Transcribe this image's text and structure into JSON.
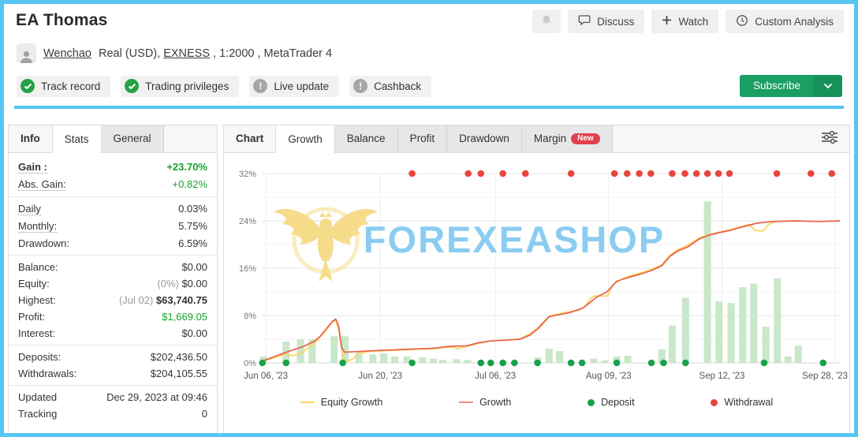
{
  "header": {
    "title": "EA Thomas",
    "user_link": "Wenchao",
    "account": {
      "pre": "Real (USD), ",
      "broker": "EXNESS",
      "post": " , 1:2000 , MetaTrader 4"
    },
    "actions": {
      "discuss": "Discuss",
      "watch": "Watch",
      "custom_analysis": "Custom Analysis"
    },
    "badges": [
      {
        "label": "Track record",
        "status": "ok"
      },
      {
        "label": "Trading privileges",
        "status": "ok"
      },
      {
        "label": "Live update",
        "status": "warn"
      },
      {
        "label": "Cashback",
        "status": "warn"
      }
    ],
    "subscribe_label": "Subscribe"
  },
  "sidebar": {
    "tabs": [
      {
        "label": "Info",
        "state": "plain"
      },
      {
        "label": "Stats",
        "state": "active"
      },
      {
        "label": "General",
        "state": "idle"
      }
    ],
    "groups": [
      {
        "rows": [
          {
            "label": "Gain :",
            "label_style": "bold dotted",
            "value": "+23.70%",
            "value_style": "green bold"
          },
          {
            "label": "Abs. Gain:",
            "label_style": "dotted",
            "value": "+0.82%",
            "value_style": "green"
          }
        ]
      },
      {
        "rows": [
          {
            "label": "Daily",
            "label_style": "dotted",
            "value": "0.03%"
          },
          {
            "label": "Monthly:",
            "label_style": "dotted",
            "value": "5.75%"
          },
          {
            "label": "Drawdown:",
            "value": "6.59%"
          }
        ]
      },
      {
        "rows": [
          {
            "label": "Balance:",
            "value": "$0.00"
          },
          {
            "label": "Equity:",
            "value_prefix": "(0%) ",
            "value": "$0.00"
          },
          {
            "label": "Highest:",
            "value_prefix": "(Jul 02) ",
            "value": "$63,740.75",
            "value_style": "bold"
          },
          {
            "label": "Profit:",
            "value": "$1,669.05",
            "value_style": "green"
          },
          {
            "label": "Interest:",
            "value": "$0.00"
          }
        ]
      },
      {
        "rows": [
          {
            "label": "Deposits:",
            "value": "$202,436.50"
          },
          {
            "label": "Withdrawals:",
            "value": "$204,105.55"
          }
        ]
      },
      {
        "rows": [
          {
            "label": "Updated",
            "value": "Dec 29, 2023 at 09:46"
          },
          {
            "label": "Tracking",
            "value": "0"
          }
        ]
      }
    ]
  },
  "chart_panel": {
    "tabs": [
      {
        "label": "Chart",
        "state": "plain"
      },
      {
        "label": "Growth",
        "state": "active"
      },
      {
        "label": "Balance",
        "state": "idle"
      },
      {
        "label": "Profit",
        "state": "idle"
      },
      {
        "label": "Drawdown",
        "state": "idle"
      },
      {
        "label": "Margin",
        "state": "idle",
        "badge": "New"
      }
    ]
  },
  "chart_data": {
    "type": "line",
    "title": "Growth",
    "y_unit": "%",
    "y_max": 32,
    "y_ticks": [
      0,
      8,
      16,
      24,
      32
    ],
    "y_subticks": [
      4,
      12,
      20,
      28
    ],
    "x_labels": [
      {
        "label": "Jun 06, '23",
        "f": 0.007
      },
      {
        "label": "Jun 20, '23",
        "f": 0.205
      },
      {
        "label": "Jul 06, '23",
        "f": 0.404
      },
      {
        "label": "Aug 09, '23",
        "f": 0.6
      },
      {
        "label": "Sep 12, '23",
        "f": 0.796
      },
      {
        "label": "Sep 28, '23",
        "f": 0.992
      }
    ],
    "series": [
      {
        "name": "Equity Growth",
        "color": "#fbd35e",
        "points": [
          [
            0.001,
            0.3
          ],
          [
            0.02,
            0.8
          ],
          [
            0.04,
            1.5
          ],
          [
            0.055,
            1.2
          ],
          [
            0.07,
            1.8
          ],
          [
            0.09,
            3.2
          ],
          [
            0.1,
            4.3
          ],
          [
            0.112,
            5.6
          ],
          [
            0.122,
            6.9
          ],
          [
            0.128,
            7.2
          ],
          [
            0.133,
            5.5
          ],
          [
            0.14,
            1.0
          ],
          [
            0.147,
            0.3
          ],
          [
            0.157,
            0.6
          ],
          [
            0.168,
            1.6
          ],
          [
            0.185,
            1.9
          ],
          [
            0.2,
            2.0
          ],
          [
            0.25,
            2.2
          ],
          [
            0.3,
            2.4
          ],
          [
            0.325,
            2.7
          ],
          [
            0.34,
            2.4
          ],
          [
            0.355,
            2.8
          ],
          [
            0.375,
            3.3
          ],
          [
            0.395,
            3.7
          ],
          [
            0.43,
            3.9
          ],
          [
            0.447,
            4.1
          ],
          [
            0.464,
            4.9
          ],
          [
            0.478,
            6.0
          ],
          [
            0.497,
            7.9
          ],
          [
            0.511,
            8.2
          ],
          [
            0.533,
            8.7
          ],
          [
            0.548,
            8.9
          ],
          [
            0.56,
            9.6
          ],
          [
            0.568,
            10.8
          ],
          [
            0.575,
            11.3
          ],
          [
            0.598,
            11.3
          ],
          [
            0.608,
            13.3
          ],
          [
            0.62,
            14.0
          ],
          [
            0.633,
            14.6
          ],
          [
            0.655,
            15.2
          ],
          [
            0.674,
            15.8
          ],
          [
            0.692,
            16.6
          ],
          [
            0.706,
            18.2
          ],
          [
            0.719,
            19.1
          ],
          [
            0.737,
            19.9
          ],
          [
            0.756,
            21.1
          ],
          [
            0.774,
            21.7
          ],
          [
            0.791,
            22.1
          ],
          [
            0.81,
            22.5
          ],
          [
            0.828,
            23.0
          ],
          [
            0.843,
            23.4
          ],
          [
            0.853,
            22.4
          ],
          [
            0.867,
            22.3
          ],
          [
            0.878,
            23.5
          ],
          [
            0.89,
            23.9
          ],
          [
            0.924,
            24.0
          ],
          [
            0.965,
            23.9
          ],
          [
            1,
            24.0
          ]
        ]
      },
      {
        "name": "Growth",
        "color": "#e8604c",
        "points": [
          [
            0.001,
            0.3
          ],
          [
            0.02,
            1.0
          ],
          [
            0.045,
            1.9
          ],
          [
            0.07,
            2.7
          ],
          [
            0.09,
            3.6
          ],
          [
            0.1,
            4.4
          ],
          [
            0.112,
            5.8
          ],
          [
            0.122,
            7.0
          ],
          [
            0.128,
            7.4
          ],
          [
            0.133,
            6.2
          ],
          [
            0.138,
            2.6
          ],
          [
            0.143,
            1.8
          ],
          [
            0.16,
            1.9
          ],
          [
            0.2,
            2.1
          ],
          [
            0.25,
            2.3
          ],
          [
            0.3,
            2.5
          ],
          [
            0.325,
            2.8
          ],
          [
            0.355,
            2.9
          ],
          [
            0.375,
            3.4
          ],
          [
            0.395,
            3.7
          ],
          [
            0.43,
            3.9
          ],
          [
            0.447,
            4.0
          ],
          [
            0.464,
            4.7
          ],
          [
            0.478,
            5.8
          ],
          [
            0.497,
            7.8
          ],
          [
            0.511,
            8.1
          ],
          [
            0.533,
            8.5
          ],
          [
            0.556,
            9.3
          ],
          [
            0.579,
            11.1
          ],
          [
            0.597,
            12.0
          ],
          [
            0.614,
            13.8
          ],
          [
            0.633,
            14.4
          ],
          [
            0.655,
            15.0
          ],
          [
            0.674,
            15.6
          ],
          [
            0.692,
            16.4
          ],
          [
            0.706,
            18.0
          ],
          [
            0.719,
            18.9
          ],
          [
            0.737,
            19.6
          ],
          [
            0.756,
            20.9
          ],
          [
            0.774,
            21.6
          ],
          [
            0.791,
            22.0
          ],
          [
            0.81,
            22.4
          ],
          [
            0.828,
            22.9
          ],
          [
            0.856,
            23.6
          ],
          [
            0.883,
            23.9
          ],
          [
            0.924,
            24.0
          ],
          [
            0.965,
            23.9
          ],
          [
            1,
            24.0
          ]
        ]
      }
    ],
    "bars": {
      "name": "transaction-volume",
      "color": "#c9e7c9",
      "values": [
        [
          0.003,
          1.1
        ],
        [
          0.042,
          3.6
        ],
        [
          0.067,
          4.0
        ],
        [
          0.087,
          4.0
        ],
        [
          0.125,
          4.5
        ],
        [
          0.144,
          4.5
        ],
        [
          0.168,
          1.8
        ],
        [
          0.192,
          1.4
        ],
        [
          0.211,
          1.6
        ],
        [
          0.23,
          1.1
        ],
        [
          0.251,
          1.1
        ],
        [
          0.278,
          0.9
        ],
        [
          0.297,
          0.7
        ],
        [
          0.313,
          0.5
        ],
        [
          0.337,
          0.6
        ],
        [
          0.356,
          0.5
        ],
        [
          0.477,
          0.9
        ],
        [
          0.497,
          2.4
        ],
        [
          0.515,
          2.0
        ],
        [
          0.574,
          0.7
        ],
        [
          0.594,
          0.4
        ],
        [
          0.614,
          1.1
        ],
        [
          0.633,
          1.2
        ],
        [
          0.692,
          2.3
        ],
        [
          0.71,
          6.3
        ],
        [
          0.733,
          11.0
        ],
        [
          0.771,
          27.3
        ],
        [
          0.791,
          10.4
        ],
        [
          0.812,
          10.1
        ],
        [
          0.832,
          12.8
        ],
        [
          0.851,
          13.4
        ],
        [
          0.872,
          6.1
        ],
        [
          0.892,
          14.3
        ],
        [
          0.91,
          1.1
        ],
        [
          0.928,
          2.9
        ]
      ]
    },
    "markers": [
      {
        "name": "Deposit",
        "color": "#17a24a",
        "y_pct": 0,
        "x": [
          0.001,
          0.042,
          0.14,
          0.26,
          0.379,
          0.396,
          0.417,
          0.437,
          0.477,
          0.535,
          0.554,
          0.614,
          0.674,
          0.695,
          0.733,
          0.869,
          0.971
        ]
      },
      {
        "name": "Withdrawal",
        "color": "#e8453c",
        "y_pct": 32,
        "x": [
          0.26,
          0.357,
          0.379,
          0.417,
          0.456,
          0.535,
          0.61,
          0.632,
          0.653,
          0.673,
          0.71,
          0.732,
          0.752,
          0.771,
          0.79,
          0.809,
          0.891,
          0.95,
          0.986
        ]
      }
    ],
    "legend": [
      {
        "label": "Equity Growth",
        "swatch": "line",
        "color": "#fbd35e"
      },
      {
        "label": "Growth",
        "swatch": "line",
        "color": "#f28b7d"
      },
      {
        "label": "Deposit",
        "swatch": "dot",
        "color": "#17a24a"
      },
      {
        "label": "Withdrawal",
        "swatch": "dot",
        "color": "#e8453c"
      }
    ],
    "watermark": {
      "text": "FOREXEASHOP",
      "text_color": "#8bccf1",
      "logo_color": "#f6db85"
    }
  },
  "colors": {
    "frame_accent": "#56c5f2",
    "subscribe_green": "#1a9e62",
    "gain_green": "#15a42c",
    "badge_ok_green": "#25a344",
    "badge_warn_gray": "#a6a6a6",
    "new_badge_red": "#e2404e"
  }
}
